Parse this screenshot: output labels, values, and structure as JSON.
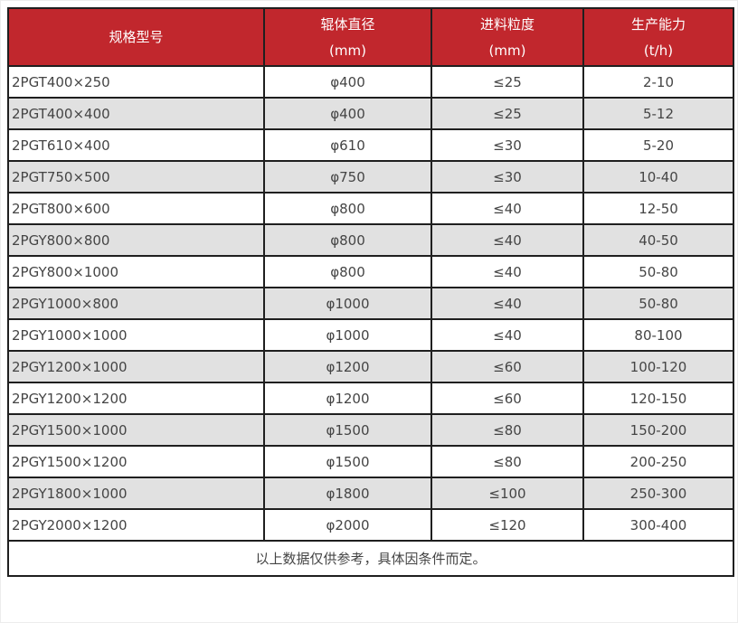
{
  "chart_data": {
    "type": "table",
    "title": "",
    "columns": [
      {
        "label": "规格型号",
        "unit": ""
      },
      {
        "label": "辊体直径",
        "unit": "(mm)"
      },
      {
        "label": "进料粒度",
        "unit": "(mm)"
      },
      {
        "label": "生产能力",
        "unit": "(t/h)"
      }
    ],
    "rows": [
      [
        "2PGT400×250",
        "φ400",
        "≤25",
        "2-10"
      ],
      [
        "2PGT400×400",
        "φ400",
        "≤25",
        "5-12"
      ],
      [
        "2PGT610×400",
        "φ610",
        "≤30",
        "5-20"
      ],
      [
        "2PGT750×500",
        "φ750",
        "≤30",
        "10-40"
      ],
      [
        "2PGT800×600",
        "φ800",
        "≤40",
        "12-50"
      ],
      [
        "2PGY800×800",
        "φ800",
        "≤40",
        "40-50"
      ],
      [
        "2PGY800×1000",
        "φ800",
        "≤40",
        "50-80"
      ],
      [
        "2PGY1000×800",
        "φ1000",
        "≤40",
        "50-80"
      ],
      [
        "2PGY1000×1000",
        "φ1000",
        "≤40",
        "80-100"
      ],
      [
        "2PGY1200×1000",
        "φ1200",
        "≤60",
        "100-120"
      ],
      [
        "2PGY1200×1200",
        "φ1200",
        "≤60",
        "120-150"
      ],
      [
        "2PGY1500×1000",
        "φ1500",
        "≤80",
        "150-200"
      ],
      [
        "2PGY1500×1200",
        "φ1500",
        "≤80",
        "200-250"
      ],
      [
        "2PGY1800×1000",
        "φ1800",
        "≤100",
        "250-300"
      ],
      [
        "2PGY2000×1200",
        "φ2000",
        "≤120",
        "300-400"
      ]
    ],
    "footnote": "以上数据仅供参考，具体因条件而定。"
  },
  "colors": {
    "header_bg": "#c1272d",
    "header_text": "#ffffff",
    "row_alt_bg": "#e1e1e1",
    "border": "#1f1f1f",
    "body_text": "#454545"
  }
}
